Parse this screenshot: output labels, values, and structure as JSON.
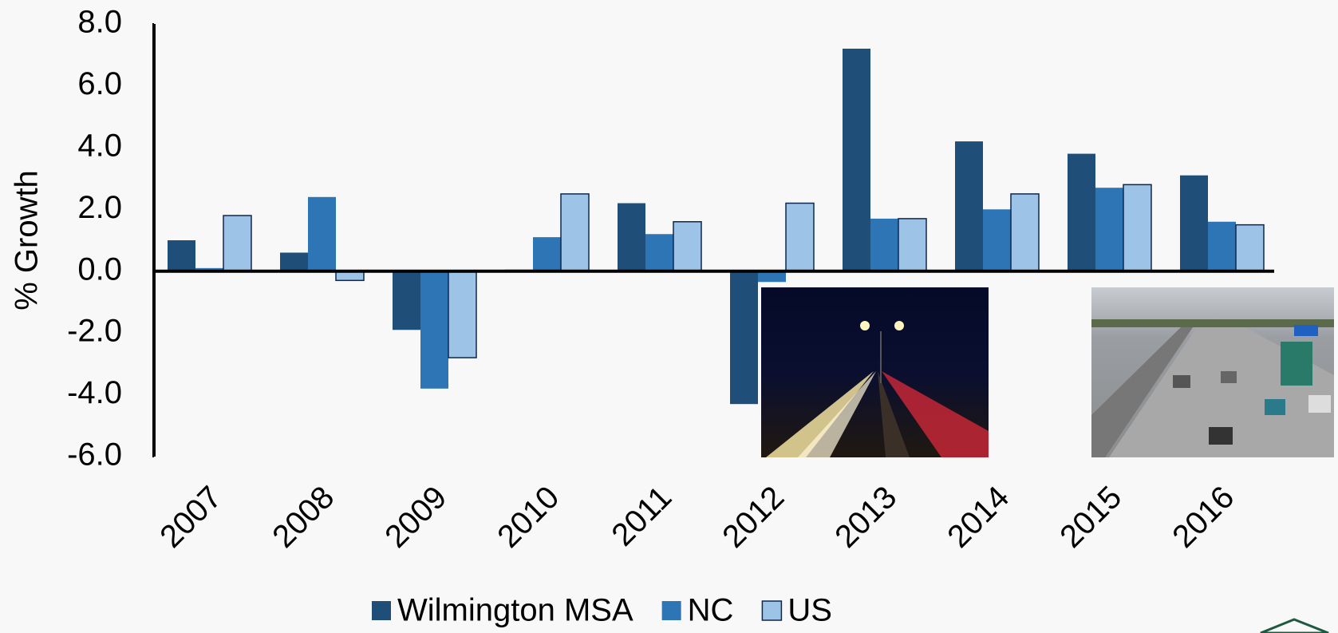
{
  "chart_data": {
    "type": "bar",
    "y_label": "% Growth",
    "categories": [
      "2007",
      "2008",
      "2009",
      "2010",
      "2011",
      "2012",
      "2013",
      "2014",
      "2015",
      "2016"
    ],
    "series": [
      {
        "name": "Wilmington MSA",
        "color": "#1f4e79",
        "values": [
          1.0,
          0.6,
          -1.9,
          0.05,
          2.2,
          -4.3,
          7.2,
          4.2,
          3.8,
          3.1
        ]
      },
      {
        "name": "NC",
        "color": "#2e75b6",
        "values": [
          0.1,
          2.4,
          -3.8,
          1.1,
          1.2,
          -0.35,
          1.7,
          2.0,
          2.7,
          1.6
        ]
      },
      {
        "name": "US",
        "color": "#9dc3e6",
        "values": [
          1.8,
          -0.3,
          -2.8,
          2.5,
          1.6,
          2.2,
          1.7,
          2.5,
          2.8,
          1.5
        ]
      }
    ],
    "ylim": [
      -6,
      8
    ],
    "yticks": [
      {
        "value": -6,
        "label": "-6.0"
      },
      {
        "value": -4,
        "label": "-4.0"
      },
      {
        "value": -2,
        "label": "-2.0"
      },
      {
        "value": 0,
        "label": "0.0"
      },
      {
        "value": 2,
        "label": "2.0"
      },
      {
        "value": 4,
        "label": "4.0"
      },
      {
        "value": 6,
        "label": "6.0"
      },
      {
        "value": 8,
        "label": "8.0"
      }
    ],
    "legend": "bottom"
  }
}
